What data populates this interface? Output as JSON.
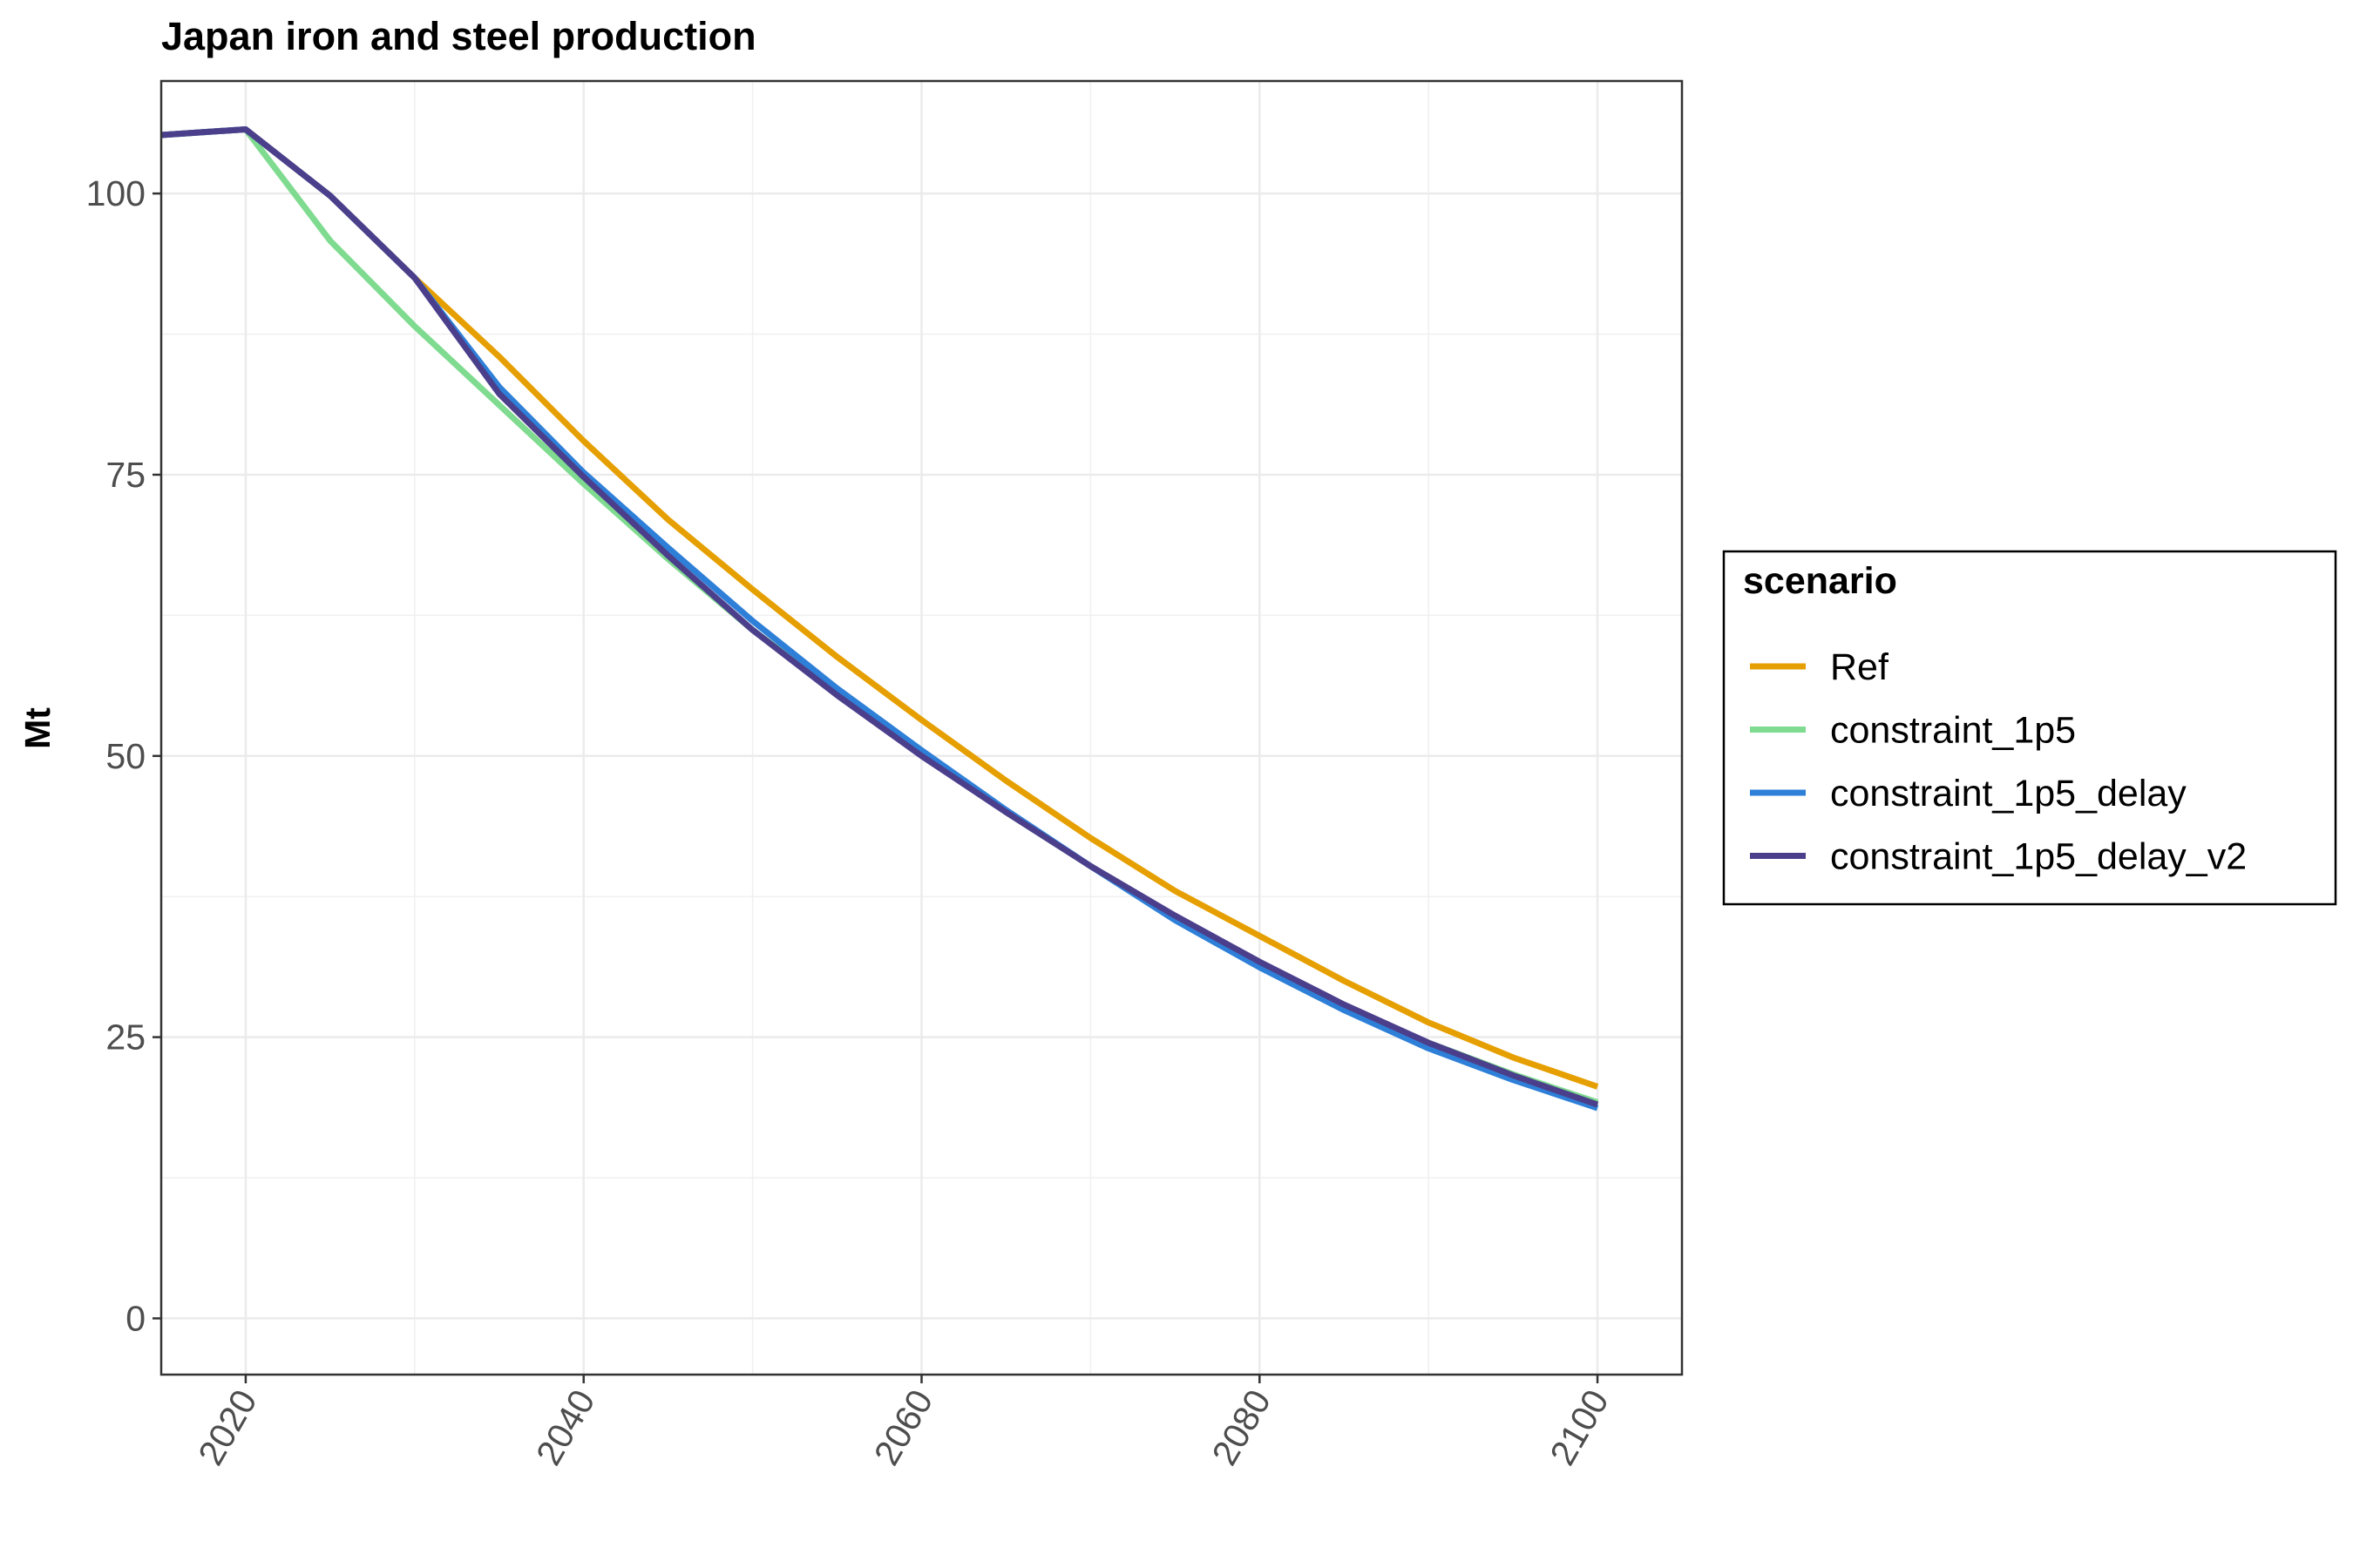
{
  "chart_data": {
    "type": "line",
    "title": "Japan  iron and steel production",
    "xlabel": "",
    "ylabel": "Mt",
    "xlim": [
      2015,
      2105
    ],
    "ylim": [
      -5,
      110
    ],
    "x_ticks": [
      2020,
      2040,
      2060,
      2080,
      2100
    ],
    "y_ticks": [
      0,
      25,
      50,
      75,
      100
    ],
    "grid": true,
    "legend": {
      "title": "scenario",
      "position": "right"
    },
    "series": [
      {
        "name": "Ref",
        "color": "#E69F00",
        "x": [
          2015,
          2020,
          2025,
          2030,
          2035,
          2040,
          2045,
          2050,
          2055,
          2060,
          2065,
          2070,
          2075,
          2080,
          2085,
          2090,
          2095,
          2100
        ],
        "y": [
          105.2,
          105.7,
          99.8,
          92.5,
          85.5,
          78.0,
          71.0,
          64.8,
          58.8,
          53.2,
          47.8,
          42.7,
          38.0,
          34.0,
          30.0,
          26.3,
          23.2,
          20.6
        ]
      },
      {
        "name": "constraint_1p5",
        "color": "#7FDB8F",
        "x": [
          2015,
          2020,
          2025,
          2030,
          2035,
          2040,
          2045,
          2050,
          2055,
          2060,
          2065,
          2070,
          2075,
          2080,
          2085,
          2090,
          2095,
          2100
        ],
        "y": [
          105.2,
          105.7,
          95.8,
          88.2,
          81.2,
          74.2,
          67.5,
          61.2,
          55.6,
          50.2,
          45.0,
          40.2,
          35.6,
          31.6,
          27.8,
          24.5,
          21.7,
          19.2
        ]
      },
      {
        "name": "constraint_1p5_delay",
        "color": "#2E7FD8",
        "x": [
          2015,
          2020,
          2025,
          2030,
          2035,
          2040,
          2045,
          2050,
          2055,
          2060,
          2065,
          2070,
          2075,
          2080,
          2085,
          2090,
          2095,
          2100
        ],
        "y": [
          105.2,
          105.7,
          99.8,
          92.5,
          82.8,
          75.2,
          68.5,
          62.0,
          56.0,
          50.5,
          45.2,
          40.2,
          35.4,
          31.2,
          27.4,
          24.0,
          21.2,
          18.7
        ]
      },
      {
        "name": "constraint_1p5_delay_v2",
        "color": "#4B3F8C",
        "x": [
          2015,
          2020,
          2025,
          2030,
          2035,
          2040,
          2045,
          2050,
          2055,
          2060,
          2065,
          2070,
          2075,
          2080,
          2085,
          2090,
          2095,
          2100
        ],
        "y": [
          105.2,
          105.7,
          99.8,
          92.5,
          82.2,
          74.8,
          67.8,
          61.2,
          55.4,
          50.0,
          45.0,
          40.2,
          35.8,
          31.7,
          27.9,
          24.5,
          21.6,
          19.0
        ]
      }
    ]
  }
}
